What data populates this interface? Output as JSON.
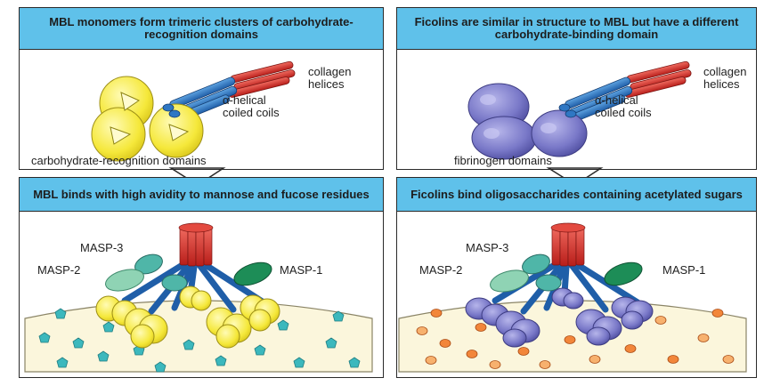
{
  "panels": {
    "top_left": {
      "title": "MBL monomers form trimeric clusters of carbohydrate-recognition domains",
      "labels": {
        "collagen": "collagen",
        "helices": "helices",
        "alpha": "α-helical",
        "coiled": "coiled coils",
        "domains": "carbohydrate-recognition domains"
      }
    },
    "top_right": {
      "title": "Ficolins are similar in structure to MBL but have a different carbohydrate-binding domain",
      "labels": {
        "collagen": "collagen",
        "helices": "helices",
        "alpha": "α-helical",
        "coiled": "coiled coils",
        "domains": "fibrinogen domains"
      }
    },
    "bottom_left": {
      "title": "MBL binds with high avidity to mannose and fucose residues",
      "labels": {
        "masp3": "MASP-3",
        "masp2": "MASP-2",
        "masp1": "MASP-1"
      }
    },
    "bottom_right": {
      "title": "Ficolins bind oligosaccharides containing acetylated sugars",
      "labels": {
        "masp3": "MASP-3",
        "masp2": "MASP-2",
        "masp1": "MASP-1"
      }
    }
  },
  "colors": {
    "header": "#5fc1ea",
    "collagen": "#d8322c",
    "coil": "#2f77c3",
    "mbl_domain": "#f7ec3c",
    "fibrinogen": "#7877c5",
    "masp3": "#4fb6a8",
    "masp2": "#8fd3b4",
    "masp1": "#1d8d57",
    "membrane": "#fbf6dc",
    "pentagon": "#3cb8bd",
    "sugar": "#f2863a"
  }
}
